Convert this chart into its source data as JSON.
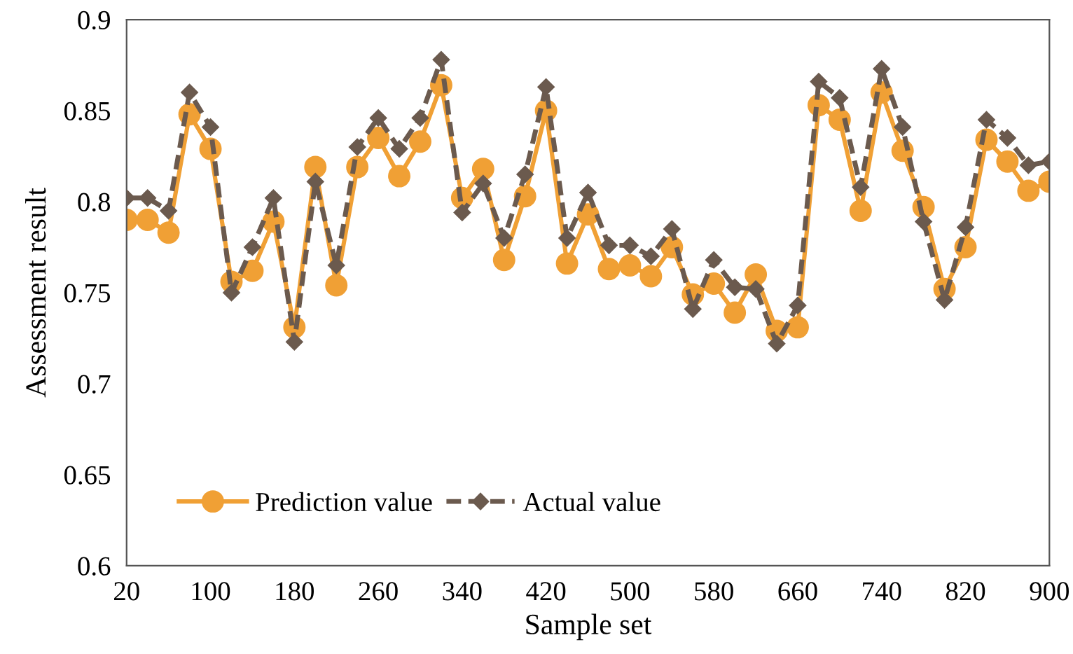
{
  "chart_data": {
    "type": "line",
    "xlabel": "Sample set",
    "ylabel": "Assessment result",
    "x": [
      20,
      40,
      60,
      80,
      100,
      120,
      140,
      160,
      180,
      200,
      220,
      240,
      260,
      280,
      300,
      320,
      340,
      360,
      380,
      400,
      420,
      440,
      460,
      480,
      500,
      520,
      540,
      560,
      580,
      600,
      620,
      640,
      660,
      680,
      700,
      720,
      740,
      760,
      780,
      800,
      820,
      840,
      860,
      880,
      900
    ],
    "series": [
      {
        "name": "Prediction value",
        "color": "#f0a035",
        "marker": "circle",
        "line_style": "solid",
        "values": [
          0.79,
          0.79,
          0.783,
          0.848,
          0.829,
          0.756,
          0.762,
          0.789,
          0.731,
          0.819,
          0.754,
          0.819,
          0.835,
          0.814,
          0.833,
          0.864,
          0.802,
          0.818,
          0.768,
          0.803,
          0.85,
          0.766,
          0.793,
          0.763,
          0.765,
          0.759,
          0.775,
          0.749,
          0.755,
          0.739,
          0.76,
          0.729,
          0.731,
          0.853,
          0.845,
          0.795,
          0.86,
          0.828,
          0.797,
          0.752,
          0.775,
          0.834,
          0.822,
          0.806,
          0.811
        ]
      },
      {
        "name": "Actual value",
        "color": "#6b5a4e",
        "marker": "diamond",
        "line_style": "dashed",
        "values": [
          0.802,
          0.802,
          0.795,
          0.86,
          0.841,
          0.75,
          0.775,
          0.802,
          0.723,
          0.811,
          0.765,
          0.83,
          0.846,
          0.829,
          0.846,
          0.878,
          0.794,
          0.81,
          0.78,
          0.815,
          0.863,
          0.78,
          0.805,
          0.776,
          0.776,
          0.77,
          0.785,
          0.741,
          0.768,
          0.753,
          0.752,
          0.722,
          0.743,
          0.866,
          0.857,
          0.808,
          0.873,
          0.841,
          0.789,
          0.746,
          0.786,
          0.845,
          0.835,
          0.82,
          0.822
        ]
      }
    ],
    "xlim": [
      20,
      900
    ],
    "xticks": [
      20,
      100,
      180,
      260,
      340,
      420,
      500,
      580,
      660,
      740,
      820,
      900
    ],
    "ylim": [
      0.6,
      0.9
    ],
    "yticks": [
      {
        "value": 0.6,
        "label": "0.6"
      },
      {
        "value": 0.65,
        "label": "0.65"
      },
      {
        "value": 0.7,
        "label": "0.7"
      },
      {
        "value": 0.75,
        "label": "0.75"
      },
      {
        "value": 0.8,
        "label": "0.8"
      },
      {
        "value": 0.85,
        "label": "0.85"
      },
      {
        "value": 0.9,
        "label": "0.9"
      }
    ],
    "grid": false,
    "legend": "bottom left"
  }
}
